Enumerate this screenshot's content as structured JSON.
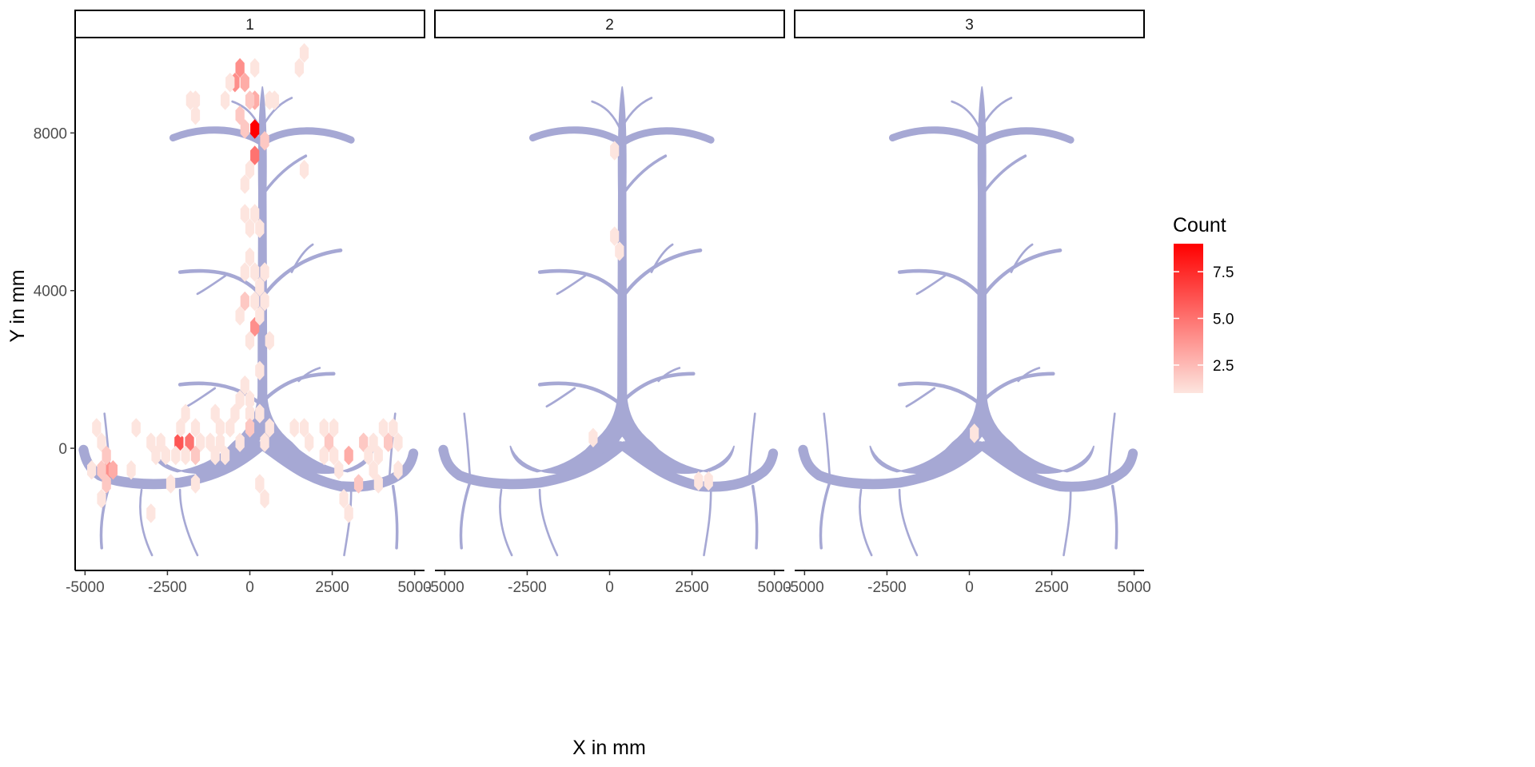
{
  "chart_data": {
    "type": "heatmap",
    "subtype": "faceted hexbin over background root image",
    "facets": [
      "1",
      "2",
      "3"
    ],
    "xlabel": "X in mm",
    "ylabel": "Y in mm",
    "xlim": [
      -5300,
      5300
    ],
    "ylim": [
      -3100,
      10400
    ],
    "x_ticks": [
      -5000,
      -2500,
      0,
      2500,
      5000
    ],
    "x_tick_labels": [
      "-5000",
      "-2500",
      "0",
      "2500",
      "5000"
    ],
    "y_ticks": [
      0,
      4000,
      8000
    ],
    "y_tick_labels": [
      "0",
      "4000",
      "8000"
    ],
    "grid": false,
    "legend": {
      "title": "Count",
      "position": "right",
      "range": [
        1,
        9
      ],
      "breaks": [
        2.5,
        5.0,
        7.5
      ],
      "break_labels": [
        "2.5",
        "5.0",
        "7.5"
      ],
      "low_color": "#fde5df",
      "high_color": "#ff0000"
    },
    "background_color": "#a6a8d4",
    "hexes": [
      [
        {
          "x": 150,
          "y": 8100,
          "count": 9
        },
        {
          "x": -300,
          "y": 9650,
          "count": 4
        },
        {
          "x": -450,
          "y": 9280,
          "count": 4
        },
        {
          "x": 150,
          "y": 7430,
          "count": 5
        },
        {
          "x": 150,
          "y": 3080,
          "count": 4
        },
        {
          "x": -2150,
          "y": 150,
          "count": 6
        },
        {
          "x": -1830,
          "y": 150,
          "count": 5
        },
        {
          "x": -4300,
          "y": -550,
          "count": 4
        },
        {
          "x": -4150,
          "y": -550,
          "count": 3
        },
        {
          "x": -150,
          "y": 9280,
          "count": 3
        },
        {
          "x": 150,
          "y": 8830,
          "count": 3
        },
        {
          "x": -300,
          "y": 8450,
          "count": 2
        },
        {
          "x": 450,
          "y": 7800,
          "count": 2
        },
        {
          "x": -150,
          "y": 8100,
          "count": 2
        },
        {
          "x": 0,
          "y": 8830,
          "count": 2
        },
        {
          "x": 150,
          "y": 9650,
          "count": 1
        },
        {
          "x": -600,
          "y": 9280,
          "count": 1
        },
        {
          "x": -750,
          "y": 8830,
          "count": 1
        },
        {
          "x": -1800,
          "y": 8830,
          "count": 1
        },
        {
          "x": -1650,
          "y": 8830,
          "count": 1
        },
        {
          "x": -1650,
          "y": 8450,
          "count": 1
        },
        {
          "x": 600,
          "y": 8830,
          "count": 1
        },
        {
          "x": 750,
          "y": 8830,
          "count": 1
        },
        {
          "x": 1500,
          "y": 9650,
          "count": 1
        },
        {
          "x": 1650,
          "y": 10030,
          "count": 1
        },
        {
          "x": 1650,
          "y": 7070,
          "count": 1
        },
        {
          "x": 0,
          "y": 7070,
          "count": 1
        },
        {
          "x": -150,
          "y": 6700,
          "count": 1
        },
        {
          "x": -150,
          "y": 5950,
          "count": 1
        },
        {
          "x": 150,
          "y": 5950,
          "count": 1
        },
        {
          "x": 0,
          "y": 5580,
          "count": 1
        },
        {
          "x": 300,
          "y": 5580,
          "count": 1
        },
        {
          "x": 0,
          "y": 4850,
          "count": 1
        },
        {
          "x": -150,
          "y": 4470,
          "count": 1
        },
        {
          "x": 150,
          "y": 4470,
          "count": 1
        },
        {
          "x": 450,
          "y": 4470,
          "count": 1
        },
        {
          "x": -150,
          "y": 3730,
          "count": 2
        },
        {
          "x": 150,
          "y": 3730,
          "count": 1
        },
        {
          "x": 450,
          "y": 3730,
          "count": 1
        },
        {
          "x": 300,
          "y": 4100,
          "count": 1
        },
        {
          "x": -300,
          "y": 3360,
          "count": 1
        },
        {
          "x": 300,
          "y": 3360,
          "count": 1
        },
        {
          "x": 0,
          "y": 2730,
          "count": 1
        },
        {
          "x": 600,
          "y": 2730,
          "count": 1
        },
        {
          "x": 300,
          "y": 1970,
          "count": 1
        },
        {
          "x": -150,
          "y": 1600,
          "count": 1
        },
        {
          "x": -300,
          "y": 1230,
          "count": 1
        },
        {
          "x": 0,
          "y": 1230,
          "count": 1
        },
        {
          "x": -450,
          "y": 880,
          "count": 1
        },
        {
          "x": 0,
          "y": 880,
          "count": 1
        },
        {
          "x": 300,
          "y": 880,
          "count": 1
        },
        {
          "x": -600,
          "y": 520,
          "count": 1
        },
        {
          "x": 0,
          "y": 520,
          "count": 2
        },
        {
          "x": 600,
          "y": 520,
          "count": 1
        },
        {
          "x": -900,
          "y": 520,
          "count": 1
        },
        {
          "x": -1650,
          "y": 520,
          "count": 1
        },
        {
          "x": -1950,
          "y": 880,
          "count": 1
        },
        {
          "x": -2100,
          "y": 520,
          "count": 1
        },
        {
          "x": -3450,
          "y": 520,
          "count": 1
        },
        {
          "x": -4650,
          "y": 520,
          "count": 1
        },
        {
          "x": -1050,
          "y": 880,
          "count": 1
        },
        {
          "x": 1350,
          "y": 520,
          "count": 1
        },
        {
          "x": 1650,
          "y": 520,
          "count": 1
        },
        {
          "x": 2250,
          "y": 520,
          "count": 1
        },
        {
          "x": 2550,
          "y": 520,
          "count": 1
        },
        {
          "x": 4050,
          "y": 520,
          "count": 1
        },
        {
          "x": 4350,
          "y": 520,
          "count": 1
        },
        {
          "x": -3000,
          "y": 150,
          "count": 1
        },
        {
          "x": -2700,
          "y": 150,
          "count": 1
        },
        {
          "x": -1500,
          "y": 150,
          "count": 1
        },
        {
          "x": -1200,
          "y": 150,
          "count": 1
        },
        {
          "x": -900,
          "y": 150,
          "count": 1
        },
        {
          "x": -300,
          "y": 150,
          "count": 1
        },
        {
          "x": 450,
          "y": 150,
          "count": 1
        },
        {
          "x": 1800,
          "y": 150,
          "count": 1
        },
        {
          "x": 2400,
          "y": 150,
          "count": 2
        },
        {
          "x": 3450,
          "y": 150,
          "count": 2
        },
        {
          "x": 3750,
          "y": 150,
          "count": 1
        },
        {
          "x": 4200,
          "y": 150,
          "count": 2
        },
        {
          "x": 4500,
          "y": 150,
          "count": 1
        },
        {
          "x": -4500,
          "y": 150,
          "count": 1
        },
        {
          "x": -2850,
          "y": -180,
          "count": 1
        },
        {
          "x": -2550,
          "y": -180,
          "count": 1
        },
        {
          "x": -2250,
          "y": -180,
          "count": 1
        },
        {
          "x": -1950,
          "y": -180,
          "count": 1
        },
        {
          "x": -1650,
          "y": -180,
          "count": 2
        },
        {
          "x": -1050,
          "y": -180,
          "count": 1
        },
        {
          "x": -750,
          "y": -180,
          "count": 1
        },
        {
          "x": -4350,
          "y": -180,
          "count": 2
        },
        {
          "x": 2250,
          "y": -180,
          "count": 1
        },
        {
          "x": 2550,
          "y": -180,
          "count": 1
        },
        {
          "x": 3000,
          "y": -180,
          "count": 3
        },
        {
          "x": 3600,
          "y": -180,
          "count": 1
        },
        {
          "x": 3900,
          "y": -180,
          "count": 1
        },
        {
          "x": -4800,
          "y": -550,
          "count": 1
        },
        {
          "x": -4500,
          "y": -550,
          "count": 2
        },
        {
          "x": -3600,
          "y": -550,
          "count": 1
        },
        {
          "x": 2700,
          "y": -550,
          "count": 1
        },
        {
          "x": 3750,
          "y": -550,
          "count": 1
        },
        {
          "x": 4500,
          "y": -550,
          "count": 1
        },
        {
          "x": -4350,
          "y": -900,
          "count": 2
        },
        {
          "x": -2400,
          "y": -900,
          "count": 1
        },
        {
          "x": -1650,
          "y": -900,
          "count": 1
        },
        {
          "x": 300,
          "y": -900,
          "count": 1
        },
        {
          "x": 3300,
          "y": -900,
          "count": 2
        },
        {
          "x": 3900,
          "y": -900,
          "count": 1
        },
        {
          "x": -4500,
          "y": -1280,
          "count": 1
        },
        {
          "x": 450,
          "y": -1280,
          "count": 1
        },
        {
          "x": 2850,
          "y": -1280,
          "count": 1
        },
        {
          "x": -3000,
          "y": -1650,
          "count": 1
        },
        {
          "x": 3000,
          "y": -1650,
          "count": 1
        }
      ],
      [
        {
          "x": 150,
          "y": 7550,
          "count": 1
        },
        {
          "x": 150,
          "y": 5380,
          "count": 1
        },
        {
          "x": 300,
          "y": 5000,
          "count": 1
        },
        {
          "x": -500,
          "y": 270,
          "count": 1
        },
        {
          "x": 2700,
          "y": -830,
          "count": 1
        },
        {
          "x": 3000,
          "y": -830,
          "count": 1
        }
      ],
      [
        {
          "x": 150,
          "y": 380,
          "count": 1
        }
      ]
    ]
  }
}
